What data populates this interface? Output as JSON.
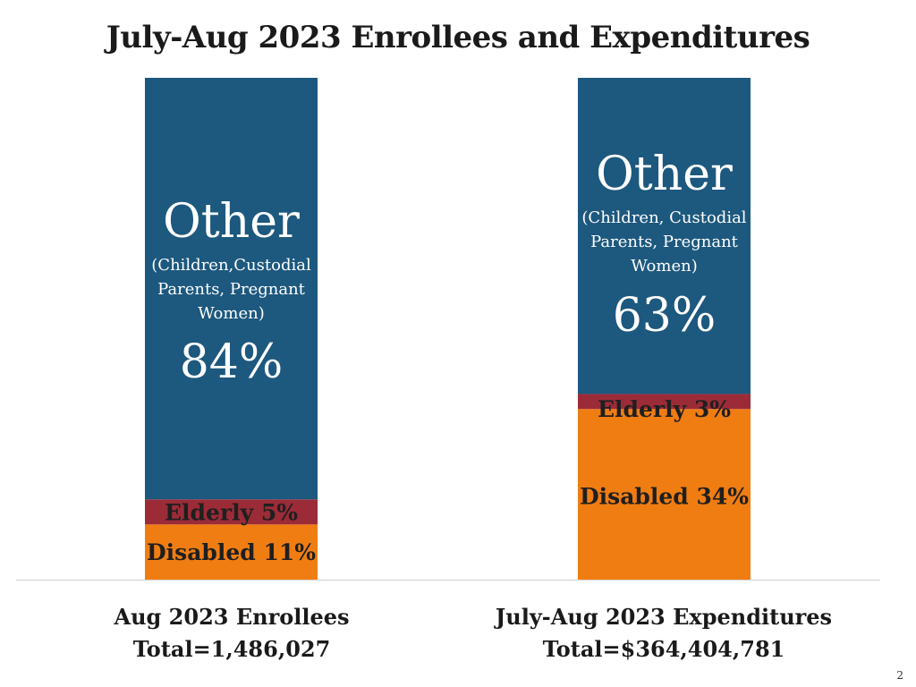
{
  "title": "July-Aug 2023 Enrollees and Expenditures",
  "page_number": "2",
  "colors": {
    "other": "#1d587e",
    "elderly": "#9c2b38",
    "disabled": "#f07d12",
    "axis": "#d9d9d9"
  },
  "chart_data": {
    "type": "bar",
    "stacked": true,
    "normalized": true,
    "categories": [
      "Aug 2023 Enrollees",
      "July-Aug 2023 Expenditures"
    ],
    "bars": [
      {
        "caption": "Aug 2023 Enrollees",
        "total_label": "Total=1,486,027",
        "segments": [
          {
            "name": "Disabled",
            "value": 11,
            "label": "Disabled 11%"
          },
          {
            "name": "Elderly",
            "value": 5,
            "label": "Elderly 5%"
          },
          {
            "name": "Other",
            "value": 84,
            "heading": "Other",
            "sub_lines": [
              "(Children,Custodial",
              "Parents, Pregnant",
              "Women)"
            ],
            "pct_label": "84%"
          }
        ]
      },
      {
        "caption": "July-Aug 2023 Expenditures",
        "total_label": "Total=$364,404,781",
        "segments": [
          {
            "name": "Disabled",
            "value": 34,
            "label": "Disabled 34%"
          },
          {
            "name": "Elderly",
            "value": 3,
            "label": "Elderly 3%"
          },
          {
            "name": "Other",
            "value": 63,
            "heading": "Other",
            "sub_lines": [
              "(Children, Custodial",
              "Parents, Pregnant",
              "Women)"
            ],
            "pct_label": "63%"
          }
        ]
      }
    ]
  }
}
